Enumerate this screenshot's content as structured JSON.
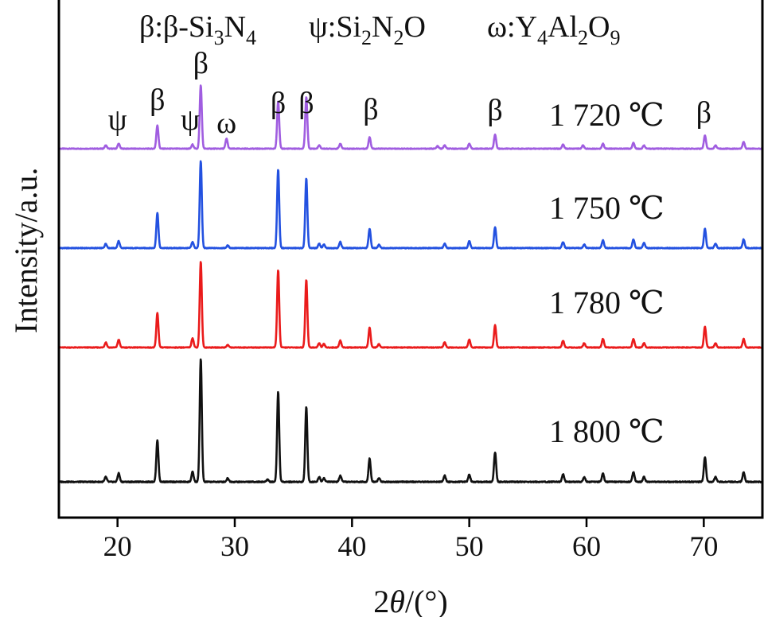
{
  "chart_data": {
    "type": "line",
    "xlabel": "2θ/(°)",
    "ylabel": "Intensity/a.u.",
    "xlim": [
      15,
      75
    ],
    "x_ticks": [
      20,
      30,
      40,
      50,
      60,
      70
    ],
    "y_axis_ticks": "none",
    "grid": false,
    "legend": {
      "placement": "top",
      "entries": [
        {
          "symbol": "β",
          "sep": ":β-Si",
          "s1": "3",
          "mid": "N",
          "s2": "4",
          "mid2": "",
          "s3": "",
          "tail": ""
        },
        {
          "symbol": "ψ",
          "sep": ":Si",
          "s1": "2",
          "mid": "N",
          "s2": "2",
          "mid2": "O",
          "s3": "",
          "tail": ""
        },
        {
          "symbol": "ω",
          "sep": ":Y",
          "s1": "4",
          "mid": "Al",
          "s2": "2",
          "mid2": "O",
          "s3": "9",
          "tail": ""
        }
      ]
    },
    "peak_labels": [
      {
        "text": "ψ",
        "x": 20.0
      },
      {
        "text": "β",
        "x": 23.4
      },
      {
        "text": "ψ",
        "x": 26.2
      },
      {
        "text": "β",
        "x": 27.1
      },
      {
        "text": "ω",
        "x": 29.3
      },
      {
        "text": "β",
        "x": 33.7
      },
      {
        "text": "β",
        "x": 36.1
      },
      {
        "text": "β",
        "x": 41.6
      },
      {
        "text": "β",
        "x": 52.2
      },
      {
        "text": "β",
        "x": 70.0
      }
    ],
    "series": [
      {
        "name": "1 720 ℃",
        "color": "#a05de0",
        "peaks": [
          [
            19.0,
            0.04
          ],
          [
            20.1,
            0.06
          ],
          [
            23.4,
            0.28
          ],
          [
            26.4,
            0.05
          ],
          [
            27.1,
            0.76
          ],
          [
            29.3,
            0.12
          ],
          [
            33.7,
            0.57
          ],
          [
            36.1,
            0.62
          ],
          [
            37.2,
            0.04
          ],
          [
            39.0,
            0.06
          ],
          [
            41.5,
            0.14
          ],
          [
            47.3,
            0.03
          ],
          [
            47.9,
            0.04
          ],
          [
            50.0,
            0.06
          ],
          [
            52.2,
            0.17
          ],
          [
            58.0,
            0.05
          ],
          [
            59.7,
            0.04
          ],
          [
            61.4,
            0.06
          ],
          [
            64.0,
            0.07
          ],
          [
            64.9,
            0.04
          ],
          [
            70.1,
            0.16
          ],
          [
            71.0,
            0.04
          ],
          [
            73.4,
            0.08
          ]
        ]
      },
      {
        "name": "1 750 ℃",
        "color": "#2351e0",
        "peaks": [
          [
            19.0,
            0.05
          ],
          [
            20.1,
            0.08
          ],
          [
            23.4,
            0.4
          ],
          [
            26.4,
            0.07
          ],
          [
            27.1,
            1.0
          ],
          [
            29.4,
            0.03
          ],
          [
            33.7,
            0.9
          ],
          [
            36.1,
            0.8
          ],
          [
            37.2,
            0.05
          ],
          [
            37.6,
            0.04
          ],
          [
            39.0,
            0.07
          ],
          [
            41.5,
            0.22
          ],
          [
            42.3,
            0.04
          ],
          [
            47.9,
            0.05
          ],
          [
            50.0,
            0.08
          ],
          [
            52.2,
            0.24
          ],
          [
            58.0,
            0.07
          ],
          [
            59.8,
            0.04
          ],
          [
            61.4,
            0.09
          ],
          [
            64.0,
            0.1
          ],
          [
            64.9,
            0.06
          ],
          [
            70.1,
            0.22
          ],
          [
            71.0,
            0.05
          ],
          [
            73.4,
            0.1
          ]
        ]
      },
      {
        "name": "1 780 ℃",
        "color": "#ea1b1b",
        "peaks": [
          [
            19.0,
            0.06
          ],
          [
            20.1,
            0.09
          ],
          [
            23.4,
            0.4
          ],
          [
            26.4,
            0.11
          ],
          [
            27.1,
            1.0
          ],
          [
            29.4,
            0.03
          ],
          [
            33.7,
            0.9
          ],
          [
            36.1,
            0.79
          ],
          [
            37.2,
            0.05
          ],
          [
            37.6,
            0.04
          ],
          [
            39.0,
            0.08
          ],
          [
            41.5,
            0.23
          ],
          [
            42.3,
            0.04
          ],
          [
            47.9,
            0.06
          ],
          [
            50.0,
            0.09
          ],
          [
            52.2,
            0.26
          ],
          [
            58.0,
            0.08
          ],
          [
            59.8,
            0.05
          ],
          [
            61.4,
            0.1
          ],
          [
            64.0,
            0.1
          ],
          [
            64.9,
            0.05
          ],
          [
            70.1,
            0.24
          ],
          [
            71.0,
            0.05
          ],
          [
            73.4,
            0.1
          ]
        ]
      },
      {
        "name": "1 800 ℃",
        "color": "#111111",
        "peaks": [
          [
            19.0,
            0.04
          ],
          [
            20.1,
            0.07
          ],
          [
            23.4,
            0.34
          ],
          [
            26.4,
            0.08
          ],
          [
            27.1,
            1.0
          ],
          [
            29.4,
            0.03
          ],
          [
            32.8,
            0.02
          ],
          [
            33.7,
            0.73
          ],
          [
            36.1,
            0.61
          ],
          [
            37.2,
            0.04
          ],
          [
            37.6,
            0.03
          ],
          [
            39.0,
            0.05
          ],
          [
            41.5,
            0.19
          ],
          [
            42.3,
            0.03
          ],
          [
            47.9,
            0.05
          ],
          [
            50.0,
            0.06
          ],
          [
            52.2,
            0.24
          ],
          [
            58.0,
            0.06
          ],
          [
            59.8,
            0.04
          ],
          [
            61.4,
            0.07
          ],
          [
            64.0,
            0.08
          ],
          [
            64.9,
            0.04
          ],
          [
            70.1,
            0.2
          ],
          [
            71.0,
            0.04
          ],
          [
            73.4,
            0.08
          ]
        ]
      }
    ]
  }
}
